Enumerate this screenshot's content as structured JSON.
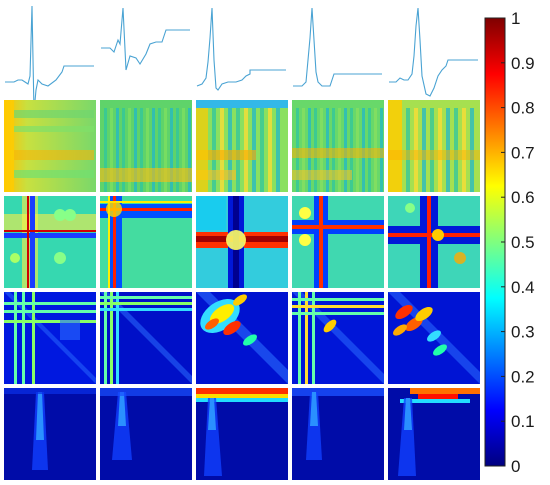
{
  "figure": {
    "rows": [
      {
        "id": "signal-waveform",
        "tiles": 5
      },
      {
        "id": "feature-matrix",
        "tiles": 5
      },
      {
        "id": "recurrence-map",
        "tiles": 5
      },
      {
        "id": "similarity-matrix",
        "tiles": 5
      },
      {
        "id": "time-frequency-map",
        "tiles": 5
      }
    ],
    "line_color": "#4aa3d3"
  },
  "colorbar": {
    "colormap": "jet",
    "min": 0,
    "max": 1,
    "ticks": [
      "1",
      "0.9",
      "0.8",
      "0.7",
      "0.6",
      "0.5",
      "0.4",
      "0.3",
      "0.2",
      "0.1",
      "0"
    ],
    "stops": [
      "#00007f",
      "#0000ff",
      "#007fff",
      "#00ffff",
      "#7fff7f",
      "#ffff00",
      "#ff7f00",
      "#ff0000",
      "#7f0000"
    ]
  }
}
